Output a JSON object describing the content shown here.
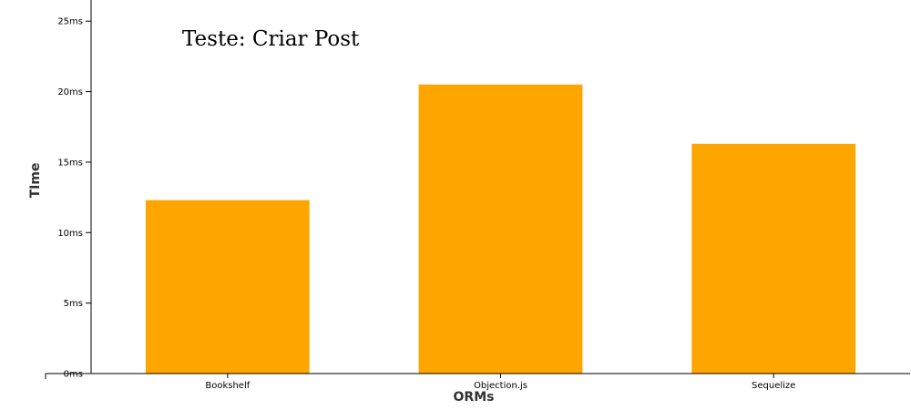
{
  "chart_data": {
    "type": "bar",
    "title": "Teste: Criar Post",
    "xlabel": "ORMs",
    "ylabel": "TIme",
    "categories": [
      "Bookshelf",
      "Objection.js",
      "Sequelize"
    ],
    "values": [
      12.3,
      20.5,
      16.3
    ],
    "y_ticks": [
      {
        "value": 0,
        "label": "0ms"
      },
      {
        "value": 5,
        "label": "5ms"
      },
      {
        "value": 10,
        "label": "10ms"
      },
      {
        "value": 15,
        "label": "15ms"
      },
      {
        "value": 20,
        "label": "20ms"
      },
      {
        "value": 25,
        "label": "25ms"
      }
    ],
    "ylim": [
      0,
      26.5
    ],
    "bar_color": "#ffa500",
    "grid": false
  }
}
